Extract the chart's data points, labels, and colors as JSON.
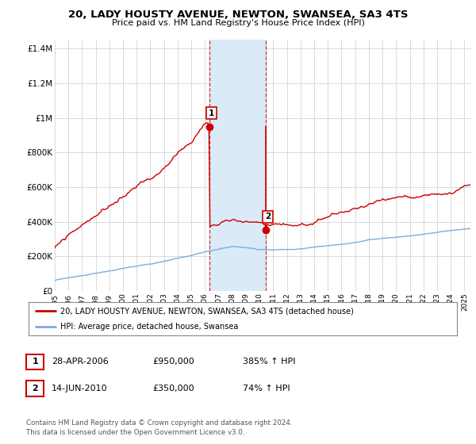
{
  "title1": "20, LADY HOUSTY AVENUE, NEWTON, SWANSEA, SA3 4TS",
  "title2": "Price paid vs. HM Land Registry's House Price Index (HPI)",
  "xlim_start": 1995.0,
  "xlim_end": 2025.5,
  "ylim_min": 0,
  "ylim_max": 1450000,
  "yticks": [
    0,
    200000,
    400000,
    600000,
    800000,
    1000000,
    1200000,
    1400000
  ],
  "ytick_labels": [
    "£0",
    "£200K",
    "£400K",
    "£600K",
    "£800K",
    "£1M",
    "£1.2M",
    "£1.4M"
  ],
  "sale1_x": 2006.32,
  "sale1_y": 950000,
  "sale2_x": 2010.45,
  "sale2_y": 350000,
  "annotation1": "1",
  "annotation2": "2",
  "sale_color": "#cc0000",
  "hpi_color": "#7aade0",
  "shaded_color": "#daeaf7",
  "legend_sale": "20, LADY HOUSTY AVENUE, NEWTON, SWANSEA, SA3 4TS (detached house)",
  "legend_hpi": "HPI: Average price, detached house, Swansea",
  "table_row1": [
    "1",
    "28-APR-2006",
    "£950,000",
    "385% ↑ HPI"
  ],
  "table_row2": [
    "2",
    "14-JUN-2010",
    "£350,000",
    "74% ↑ HPI"
  ],
  "footer": "Contains HM Land Registry data © Crown copyright and database right 2024.\nThis data is licensed under the Open Government Licence v3.0.",
  "bg_color": "#ffffff"
}
